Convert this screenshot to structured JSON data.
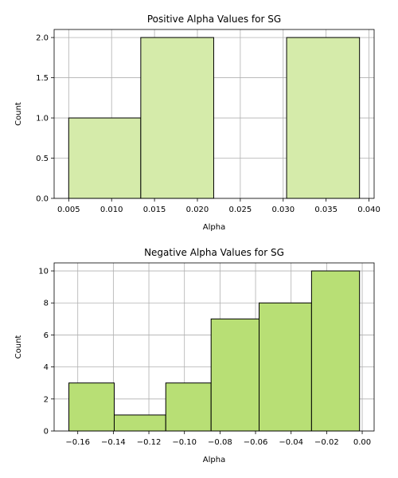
{
  "chart_data": [
    {
      "type": "bar",
      "title": "Positive Alpha Values for SG",
      "xlabel": "Alpha",
      "ylabel": "Count",
      "color": "#d5ebaa",
      "grid": true,
      "bin_edges": [
        0.005,
        0.0134,
        0.0219,
        0.0304,
        0.0389
      ],
      "values": [
        1,
        2,
        0,
        2
      ],
      "xlim": [
        0.0033,
        0.0406
      ],
      "ylim": [
        0,
        2.1
      ],
      "xticks": [
        0.005,
        0.01,
        0.015,
        0.02,
        0.025,
        0.03,
        0.035,
        0.04
      ],
      "xtick_labels": [
        "0.005",
        "0.010",
        "0.015",
        "0.020",
        "0.025",
        "0.030",
        "0.035",
        "0.040"
      ],
      "yticks": [
        0.0,
        0.5,
        1.0,
        1.5,
        2.0
      ],
      "ytick_labels": [
        "0.0",
        "0.5",
        "1.0",
        "1.5",
        "2.0"
      ]
    },
    {
      "type": "bar",
      "title": "Negative Alpha Values for SG",
      "xlabel": "Alpha",
      "ylabel": "Count",
      "color": "#b8df75",
      "grid": true,
      "bin_edges": [
        -0.165,
        -0.1395,
        -0.1105,
        -0.085,
        -0.058,
        -0.0285,
        -0.0015
      ],
      "values": [
        3,
        1,
        3,
        7,
        8,
        10
      ],
      "xlim": [
        -0.1733,
        0.0067
      ],
      "ylim": [
        0,
        10.5
      ],
      "xticks": [
        -0.16,
        -0.14,
        -0.12,
        -0.1,
        -0.08,
        -0.06,
        -0.04,
        -0.02,
        0.0
      ],
      "xtick_labels": [
        "−0.16",
        "−0.14",
        "−0.12",
        "−0.10",
        "−0.08",
        "−0.06",
        "−0.04",
        "−0.02",
        "0.00"
      ],
      "yticks": [
        0,
        2,
        4,
        6,
        8,
        10
      ],
      "ytick_labels": [
        "0",
        "2",
        "4",
        "6",
        "8",
        "10"
      ]
    }
  ]
}
